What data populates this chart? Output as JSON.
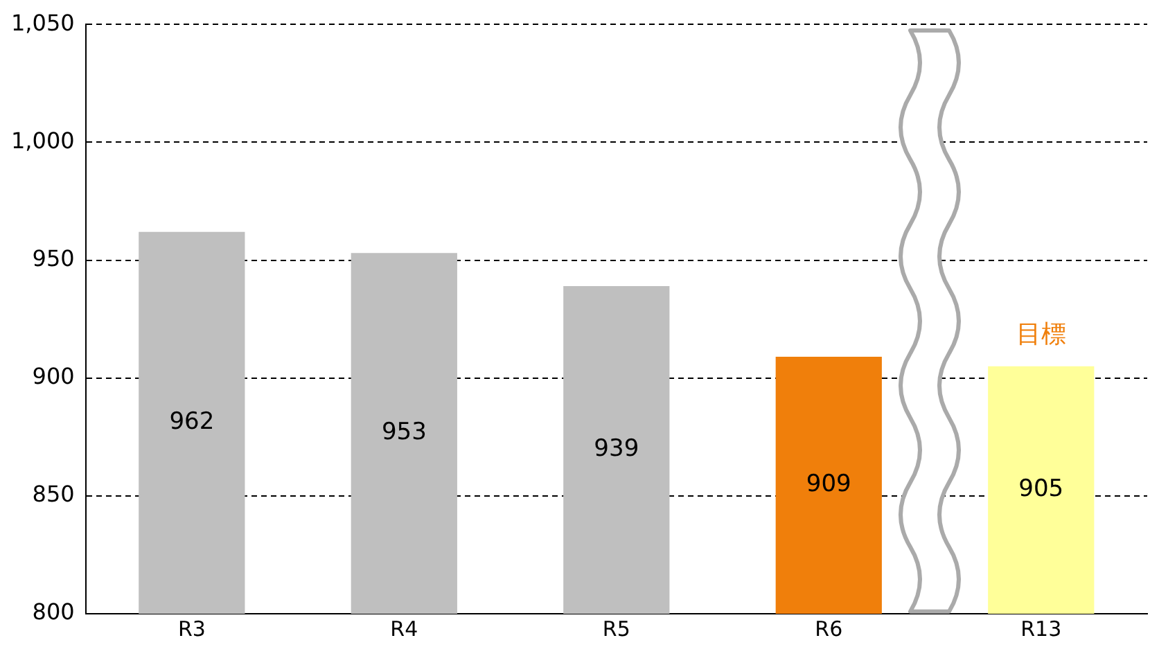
{
  "chart_data": {
    "type": "bar",
    "categories": [
      "R3",
      "R4",
      "R5",
      "R6",
      "R13"
    ],
    "values": [
      962,
      953,
      939,
      909,
      905
    ],
    "colors": [
      "#bfbfbf",
      "#bfbfbf",
      "#bfbfbf",
      "#f07f0b",
      "#ffff99"
    ],
    "ylim": [
      800,
      1050
    ],
    "yticks": [
      800,
      850,
      900,
      950,
      {
        "value": 1000,
        "label": "1,000"
      },
      {
        "value": 1050,
        "label": "1,050"
      }
    ],
    "grid": "y",
    "data_labels": true,
    "annotations": [
      {
        "text": "目標",
        "x": "R13",
        "y": 905
      }
    ]
  }
}
